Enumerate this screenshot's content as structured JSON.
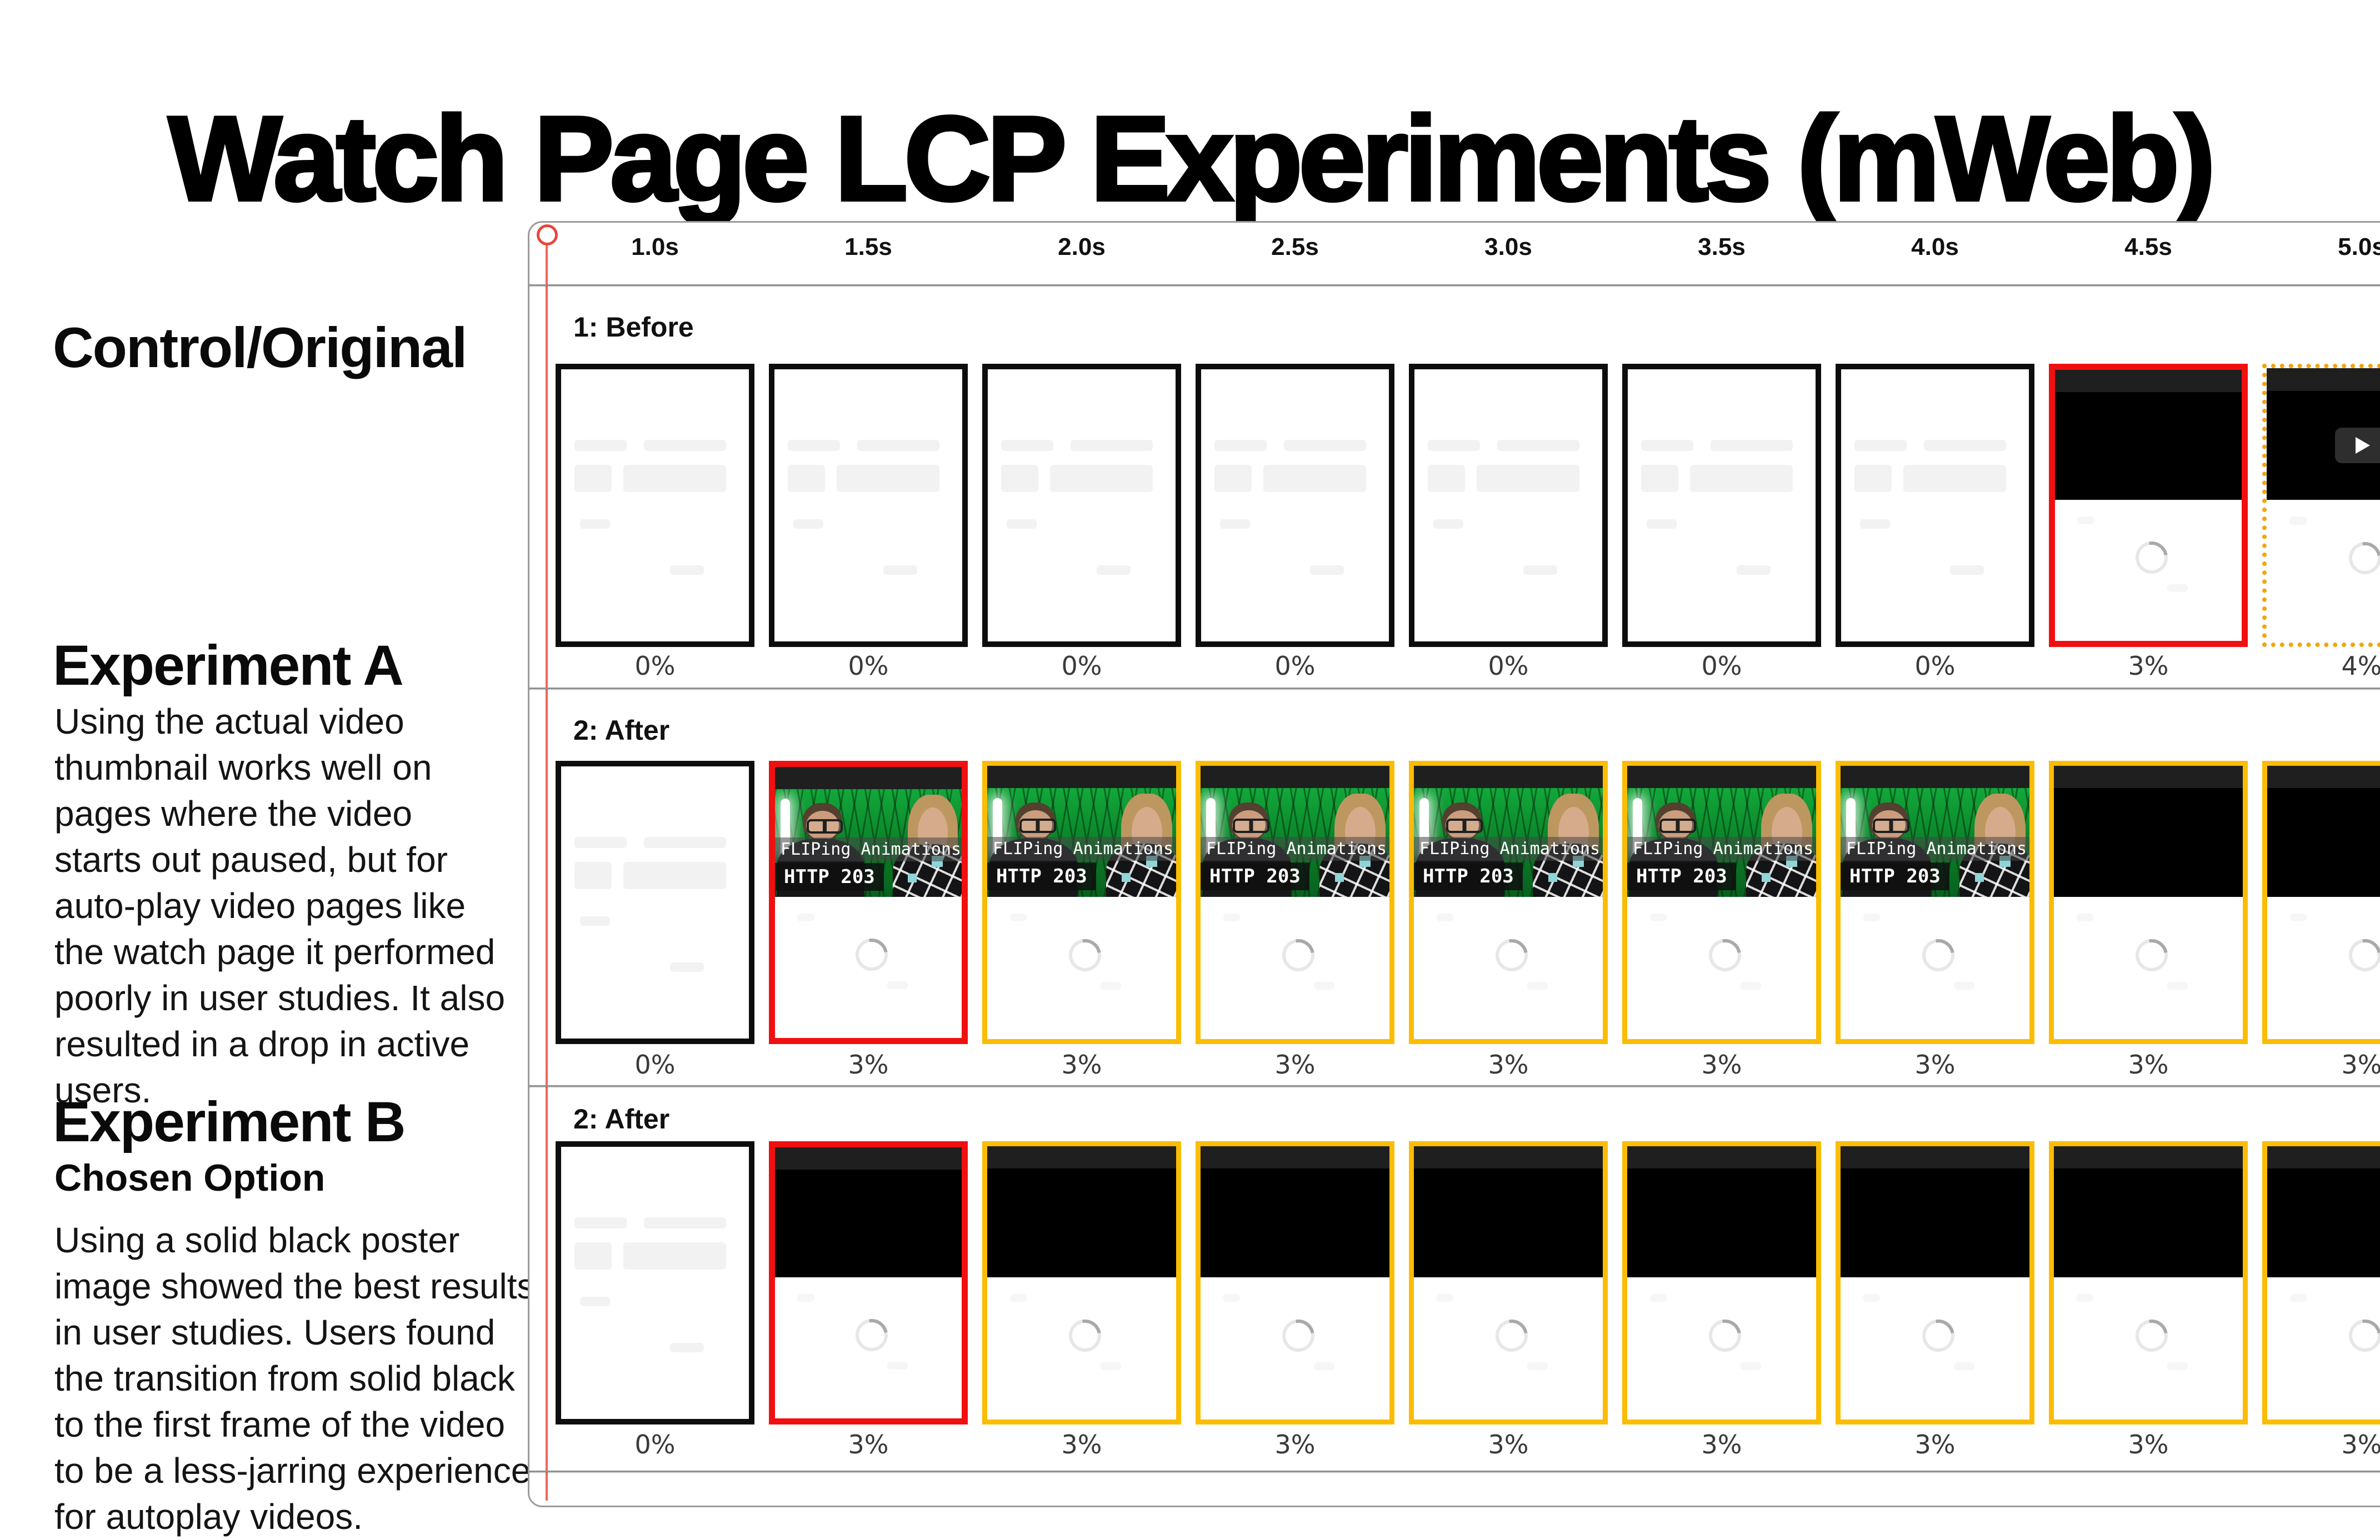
{
  "title": "Watch Page LCP Experiments (mWeb)",
  "sidebar": {
    "control_heading": "Control/Original",
    "experiment_a": {
      "heading": "Experiment A",
      "body": "Using the actual video thumbnail works well on pages where the video starts out paused, but for auto-play video pages like the watch page it performed poorly in user studies. It also resulted in a drop in active users."
    },
    "experiment_b": {
      "heading": "Experiment B",
      "subheading": "Chosen Option",
      "body": "Using a solid black poster image showed the best results in user studies. Users found the transition from solid black to the first frame of the video to be a less-jarring experience for autoplay videos."
    }
  },
  "filmstrip": {
    "time_labels": [
      "1.0s",
      "1.5s",
      "2.0s",
      "2.5s",
      "3.0s",
      "3.5s",
      "4.0s",
      "4.5s",
      "5.0s"
    ],
    "thumbnail_caption": {
      "line1": "FLIPing Animations",
      "line2": "HTTP 203"
    },
    "rows": [
      {
        "label": "1: Before",
        "frames": [
          {
            "variant": "blank",
            "border": "black",
            "percent": "0%"
          },
          {
            "variant": "blank",
            "border": "black",
            "percent": "0%"
          },
          {
            "variant": "blank",
            "border": "black",
            "percent": "0%"
          },
          {
            "variant": "blank",
            "border": "black",
            "percent": "0%"
          },
          {
            "variant": "blank",
            "border": "black",
            "percent": "0%"
          },
          {
            "variant": "blank",
            "border": "black",
            "percent": "0%"
          },
          {
            "variant": "blank",
            "border": "black",
            "percent": "0%"
          },
          {
            "variant": "poster",
            "border": "red",
            "percent": "3%"
          },
          {
            "variant": "poster-play",
            "border": "yellow-dotted",
            "percent": "4%"
          }
        ]
      },
      {
        "label": "2: After",
        "frames": [
          {
            "variant": "blank",
            "border": "black",
            "percent": "0%"
          },
          {
            "variant": "thumbnail",
            "border": "red",
            "percent": "3%"
          },
          {
            "variant": "thumbnail",
            "border": "yellow",
            "percent": "3%"
          },
          {
            "variant": "thumbnail",
            "border": "yellow",
            "percent": "3%"
          },
          {
            "variant": "thumbnail",
            "border": "yellow",
            "percent": "3%"
          },
          {
            "variant": "thumbnail",
            "border": "yellow",
            "percent": "3%"
          },
          {
            "variant": "thumbnail",
            "border": "yellow",
            "percent": "3%"
          },
          {
            "variant": "poster",
            "border": "yellow",
            "percent": "3%"
          },
          {
            "variant": "poster",
            "border": "yellow",
            "percent": "3%"
          }
        ]
      },
      {
        "label": "2: After",
        "frames": [
          {
            "variant": "blank",
            "border": "black",
            "percent": "0%"
          },
          {
            "variant": "poster",
            "border": "red",
            "percent": "3%"
          },
          {
            "variant": "poster",
            "border": "yellow",
            "percent": "3%"
          },
          {
            "variant": "poster",
            "border": "yellow",
            "percent": "3%"
          },
          {
            "variant": "poster",
            "border": "yellow",
            "percent": "3%"
          },
          {
            "variant": "poster",
            "border": "yellow",
            "percent": "3%"
          },
          {
            "variant": "poster",
            "border": "yellow",
            "percent": "3%"
          },
          {
            "variant": "poster",
            "border": "yellow",
            "percent": "3%"
          },
          {
            "variant": "poster",
            "border": "yellow",
            "percent": "3%"
          }
        ]
      }
    ]
  },
  "colors": {
    "red_border": "#f01010",
    "yellow_border": "#fbbc04",
    "yellow_dotted_border": "#f2a50c",
    "black_border": "#0d0d0d",
    "timeline_red": "#f2655c",
    "divider_gray": "#8f8f8f"
  }
}
